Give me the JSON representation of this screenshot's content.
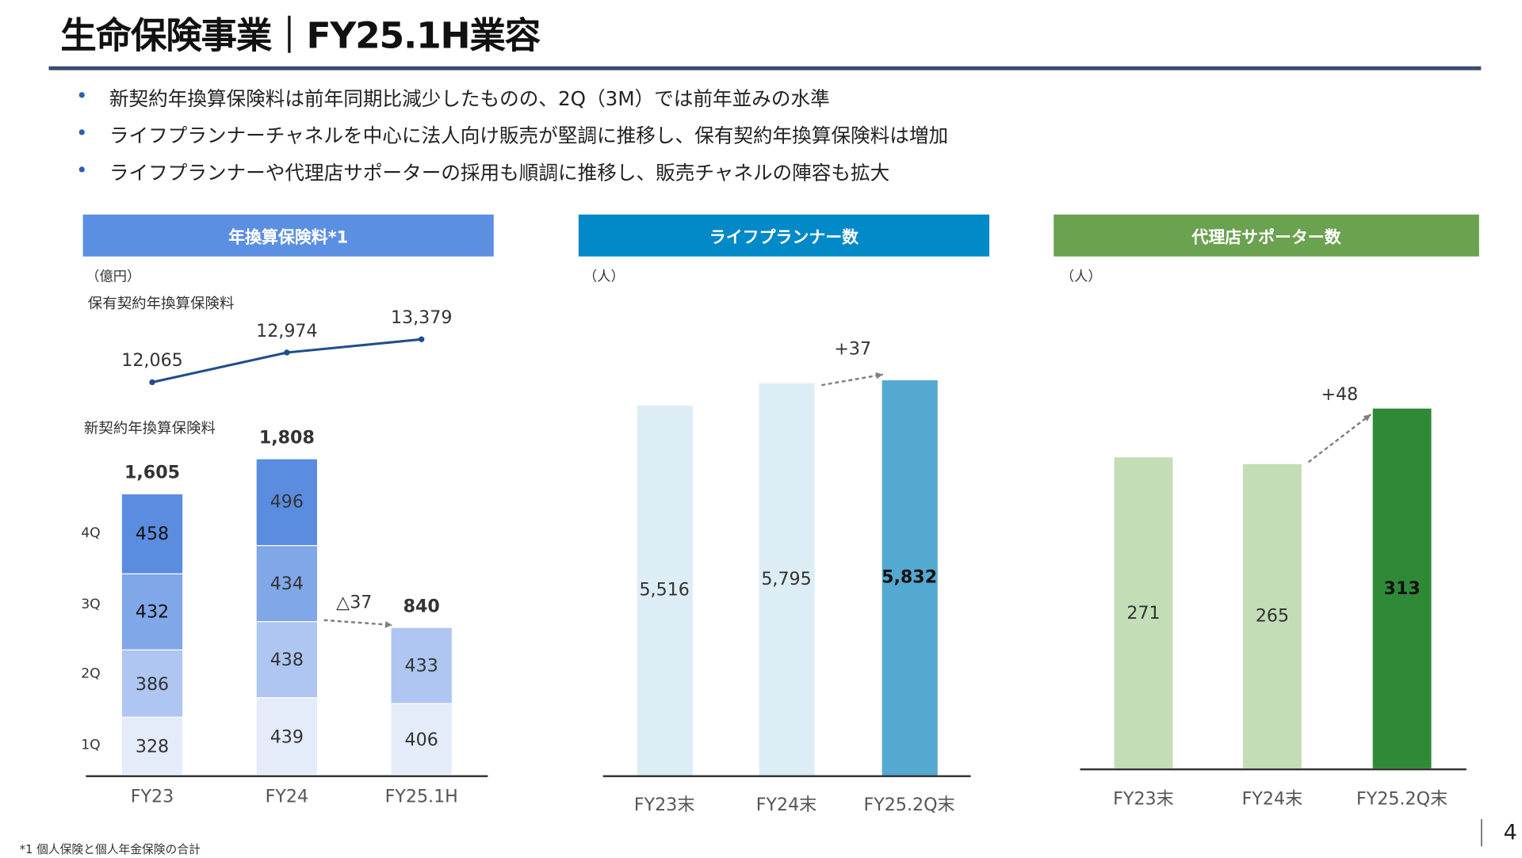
{
  "title": "生命保険事業｜FY25.1H業容",
  "bullets": [
    "新契約年換算保険料は前年同期比減少したものの、2Q（3M）では前年並みの水準",
    "ライフプランナーチャネルを中心に法人向け販売が堅調に推移し、保有契約年換算保険料は増加",
    "ライフプランナーや代理店サポーターの採用も順調に推移し、販売チャネルの陣容も拡大"
  ],
  "colors": {
    "rule": "#3c4a6e",
    "panel1": "#5b8fe2",
    "panel2": "#0289c8",
    "panel3": "#6aa24f",
    "q4": "#5a8de0",
    "q3": "#80a7e8",
    "q2": "#aec6f1",
    "q1": "#e4ecf9",
    "lp_light": "#dcedf5",
    "lp_dark": "#54a9d1",
    "ag_light": "#c3deb7",
    "ag_dark": "#2f8a38"
  },
  "footnote": "*1 個人保険と個人年金保険の合計",
  "page_number": "4",
  "chart_data": [
    {
      "type": "bar",
      "stacked": true,
      "title": "年換算保険料*1",
      "unit": "（億円）",
      "sublabel": "新契約年換算保険料",
      "categories": [
        "FY23",
        "FY24",
        "FY25.1H"
      ],
      "series": [
        {
          "name": "1Q",
          "values": [
            328,
            439,
            406
          ]
        },
        {
          "name": "2Q",
          "values": [
            386,
            438,
            433
          ]
        },
        {
          "name": "3Q",
          "values": [
            432,
            434,
            null
          ]
        },
        {
          "name": "4Q",
          "values": [
            458,
            496,
            null
          ]
        }
      ],
      "totals": [
        "1,605",
        "1,808",
        "840"
      ],
      "value_labels": [
        [
          "328",
          "386",
          "432",
          "458"
        ],
        [
          "439",
          "438",
          "434",
          "496"
        ],
        [
          "406",
          "433"
        ]
      ],
      "annotation": "△37",
      "line": {
        "type": "line",
        "label": "保有契約年換算保険料",
        "values": [
          12065,
          12974,
          13379
        ],
        "value_labels": [
          "12,065",
          "12,974",
          "13,379"
        ]
      }
    },
    {
      "type": "bar",
      "title": "ライフプランナー数",
      "unit": "（人）",
      "categories": [
        "FY23末",
        "FY24末",
        "FY25.2Q末"
      ],
      "values": [
        5516,
        5795,
        5832
      ],
      "value_labels": [
        "5,516",
        "5,795",
        "5,832"
      ],
      "annotation": "+37"
    },
    {
      "type": "bar",
      "title": "代理店サポーター数",
      "unit": "（人）",
      "categories": [
        "FY23末",
        "FY24末",
        "FY25.2Q末"
      ],
      "values": [
        271,
        265,
        313
      ],
      "value_labels": [
        "271",
        "265",
        "313"
      ],
      "annotation": "+48"
    }
  ]
}
